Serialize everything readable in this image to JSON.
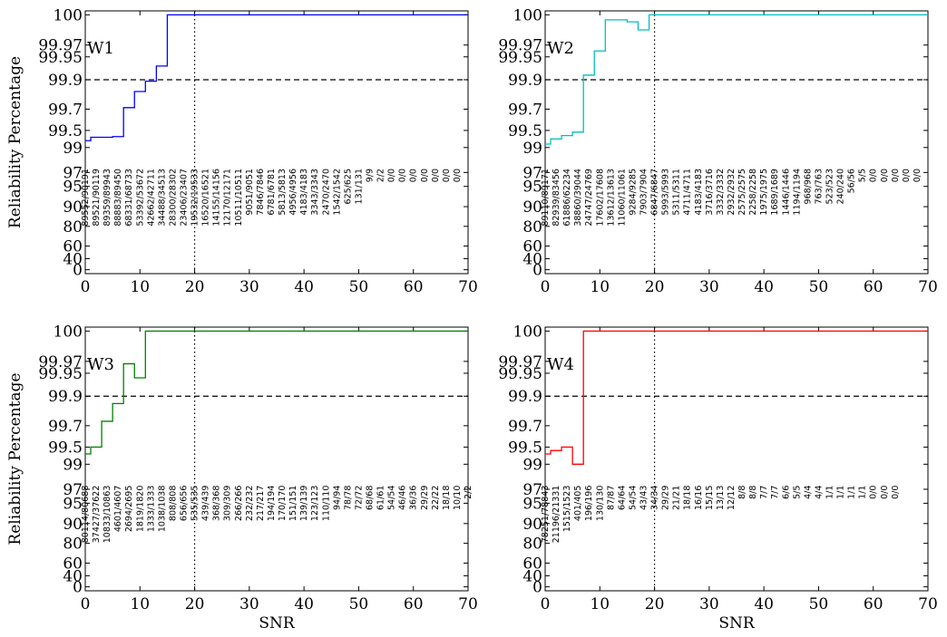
{
  "chart_data": [
    {
      "type": "line",
      "panel_label": "W1",
      "color": "#0000ff",
      "ylabel": "Reliability Percentage",
      "xlabel": "",
      "xlim": [
        0,
        70
      ],
      "x_ticks": [
        0,
        10,
        20,
        30,
        40,
        50,
        60,
        70
      ],
      "y_tick_labels": [
        "0",
        "40",
        "60",
        "80",
        "90",
        "95",
        "97",
        "99",
        "99.5",
        "99.7",
        "99.9",
        "99.95",
        "99.97",
        "100"
      ],
      "reference_lines": {
        "dashed_y": 99.9,
        "dotted_x": 20
      },
      "series": {
        "x": [
          0,
          1,
          2,
          3,
          4,
          5,
          6,
          7,
          8,
          9,
          10,
          11,
          12,
          13,
          14,
          15,
          16,
          70
        ],
        "y": [
          99.2,
          99.3,
          99.3,
          99.3,
          99.3,
          99.32,
          99.32,
          99.71,
          99.71,
          99.82,
          99.82,
          99.89,
          99.89,
          99.93,
          99.93,
          100,
          100,
          100
        ]
      },
      "counts": [
        "89552/90191",
        "89521/90119",
        "89359/89943",
        "88883/89450",
        "68331/68733",
        "53392/53672",
        "42662/42711",
        "34488/34513",
        "28300/28302",
        "23406/23407",
        "19532/19533",
        "16520/16521",
        "14155/14156",
        "12170/12171",
        "10511/10511",
        "9051/9051",
        "7846/7846",
        "6781/6781",
        "5813/5813",
        "4956/4956",
        "4183/4183",
        "3343/3343",
        "2470/2470",
        "1542/1542",
        "625/625",
        "131/131",
        "9/9",
        "2/2",
        "0/0",
        "0/0",
        "0/0",
        "0/0",
        "0/0",
        "0/0",
        "0/0"
      ]
    },
    {
      "type": "line",
      "panel_label": "W2",
      "color": "#00bfbf",
      "ylabel": "",
      "xlabel": "",
      "xlim": [
        0,
        70
      ],
      "x_ticks": [
        0,
        10,
        20,
        30,
        40,
        50,
        60,
        70
      ],
      "y_tick_labels": [
        "0",
        "40",
        "60",
        "80",
        "90",
        "95",
        "97",
        "99",
        "99.5",
        "99.7",
        "99.9",
        "99.95",
        "99.97",
        "100"
      ],
      "reference_lines": {
        "dashed_y": 99.9,
        "dotted_x": 20
      },
      "series": {
        "x": [
          0,
          1,
          2,
          3,
          4,
          5,
          6,
          7,
          8,
          9,
          10,
          11,
          12,
          13,
          14,
          15,
          16,
          17,
          18,
          19,
          20,
          70
        ],
        "y": [
          99.1,
          99.25,
          99.25,
          99.35,
          99.35,
          99.45,
          99.45,
          99.91,
          99.91,
          99.96,
          99.96,
          99.995,
          99.995,
          99.995,
          99.995,
          99.993,
          99.993,
          99.985,
          99.985,
          100,
          100,
          100
        ]
      },
      "counts": [
        "89110/89171",
        "82939/83456",
        "61886/62234",
        "38860/39044",
        "24747/24769",
        "17602/17608",
        "13612/13613",
        "11060/11061",
        "9284/9285",
        "7903/7904",
        "6847/6847",
        "5993/5993",
        "5311/5311",
        "4711/4711",
        "4183/4183",
        "3716/3716",
        "3332/3332",
        "2932/2932",
        "2575/2575",
        "2258/2258",
        "1975/1975",
        "1689/1689",
        "1446/1446",
        "1194/1194",
        "968/968",
        "763/763",
        "523/523",
        "240/240",
        "56/56",
        "5/5",
        "0/0",
        "0/0",
        "0/0",
        "0/0",
        "0/0"
      ]
    },
    {
      "type": "line",
      "panel_label": "W3",
      "color": "#008000",
      "ylabel": "Reliability Percentage",
      "xlabel": "SNR",
      "xlim": [
        0,
        70
      ],
      "x_ticks": [
        0,
        10,
        20,
        30,
        40,
        50,
        60,
        70
      ],
      "y_tick_labels": [
        "0",
        "40",
        "60",
        "80",
        "90",
        "95",
        "97",
        "99",
        "99.5",
        "99.7",
        "99.9",
        "99.95",
        "99.97",
        "100"
      ],
      "reference_lines": {
        "dashed_y": 99.9,
        "dotted_x": 20
      },
      "series": {
        "x": [
          0,
          1,
          2,
          3,
          4,
          5,
          6,
          7,
          8,
          9,
          10,
          11,
          12,
          70
        ],
        "y": [
          99.3,
          99.5,
          99.5,
          99.73,
          99.73,
          99.85,
          99.85,
          99.966,
          99.966,
          99.94,
          99.94,
          100,
          100,
          100
        ]
      },
      "counts": [
        "80114/80688",
        "37427/37622",
        "10833/10863",
        "4601/4607",
        "2694/2695",
        "1819/1820",
        "1333/1333",
        "1038/1038",
        "808/808",
        "656/656",
        "535/535",
        "439/439",
        "368/368",
        "309/309",
        "266/266",
        "232/232",
        "217/217",
        "194/194",
        "170/170",
        "151/151",
        "139/139",
        "123/123",
        "110/110",
        "94/94",
        "78/78",
        "72/72",
        "68/68",
        "61/61",
        "54/54",
        "46/46",
        "36/36",
        "29/29",
        "22/22",
        "18/18",
        "10/10",
        "2/2"
      ]
    },
    {
      "type": "line",
      "panel_label": "W4",
      "color": "#ff0000",
      "ylabel": "",
      "xlabel": "SNR",
      "xlim": [
        0,
        70
      ],
      "x_ticks": [
        0,
        10,
        20,
        30,
        40,
        50,
        60,
        70
      ],
      "y_tick_labels": [
        "0",
        "40",
        "60",
        "80",
        "90",
        "95",
        "97",
        "99",
        "99.5",
        "99.7",
        "99.9",
        "99.95",
        "99.97",
        "100"
      ],
      "reference_lines": {
        "dashed_y": 99.9,
        "dotted_x": 20
      },
      "series": {
        "x": [
          0,
          1,
          2,
          3,
          4,
          5,
          6,
          7,
          8,
          70
        ],
        "y": [
          99.3,
          99.4,
          99.4,
          99.5,
          99.5,
          99.0,
          99.0,
          100,
          100,
          100
        ]
      },
      "counts": [
        "78251/78843",
        "21196/21331",
        "1515/1523",
        "401/405",
        "196/196",
        "130/130",
        "87/87",
        "64/64",
        "54/54",
        "43/43",
        "34/34",
        "29/29",
        "21/21",
        "18/18",
        "16/16",
        "15/15",
        "13/13",
        "12/12",
        "8/8",
        "8/8",
        "7/7",
        "7/7",
        "6/6",
        "5/5",
        "4/4",
        "4/4",
        "1/1",
        "1/1",
        "1/1",
        "1/1",
        "0/0",
        "0/0",
        "0/0"
      ]
    }
  ]
}
